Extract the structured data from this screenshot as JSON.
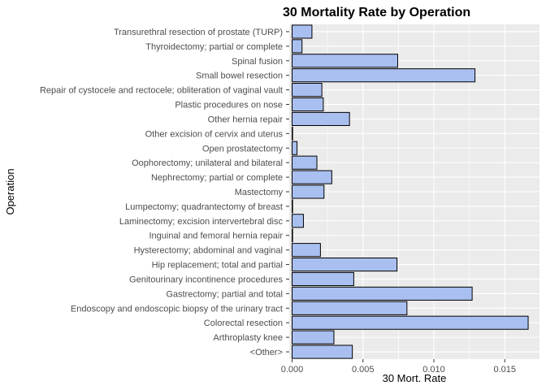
{
  "chart_data": {
    "type": "bar",
    "orientation": "horizontal",
    "title": "30 Mortality Rate by Operation",
    "xlabel": "30 Mort. Rate",
    "ylabel": "Operation",
    "xlim": [
      -0.0002,
      0.01745
    ],
    "xticks": [
      0.0,
      0.005,
      0.01,
      0.015
    ],
    "xtick_labels": [
      "0.000",
      "0.005",
      "0.010",
      "0.015"
    ],
    "grid": true,
    "legend": "none",
    "colors": {
      "bar_fill": "#a9bff0",
      "bar_stroke": "#000000",
      "panel": "#ebebeb",
      "grid": "#ffffff"
    },
    "categories": [
      "Transurethral resection of prostate (TURP)",
      "Thyroidectomy; partial or complete",
      "Spinal fusion",
      "Small bowel resection",
      "Repair of cystocele and rectocele; obliteration of vaginal vault",
      "Plastic procedures on nose",
      "Other hernia repair",
      "Other excision of cervix and uterus",
      "Open prostatectomy",
      "Oophorectomy; unilateral and bilateral",
      "Nephrectomy; partial or complete",
      "Mastectomy",
      "Lumpectomy; quadrantectomy of breast",
      "Laminectomy; excision intervertebral disc",
      "Inguinal and femoral hernia repair",
      "Hysterectomy; abdominal and vaginal",
      "Hip replacement; total and partial",
      "Genitourinary incontinence procedures",
      "Gastrectomy; partial and total",
      "Endoscopy and endoscopic biopsy of the urinary tract",
      "Colorectal resection",
      "Arthroplasty knee",
      "<Other>"
    ],
    "values": [
      0.0014,
      0.0007,
      0.00745,
      0.0129,
      0.0021,
      0.0022,
      0.00405,
      2e-05,
      0.00035,
      0.00175,
      0.0028,
      0.00225,
      3e-05,
      0.0008,
      2e-05,
      0.002,
      0.0074,
      0.00435,
      0.0127,
      0.0081,
      0.01665,
      0.00295,
      0.00425
    ]
  }
}
